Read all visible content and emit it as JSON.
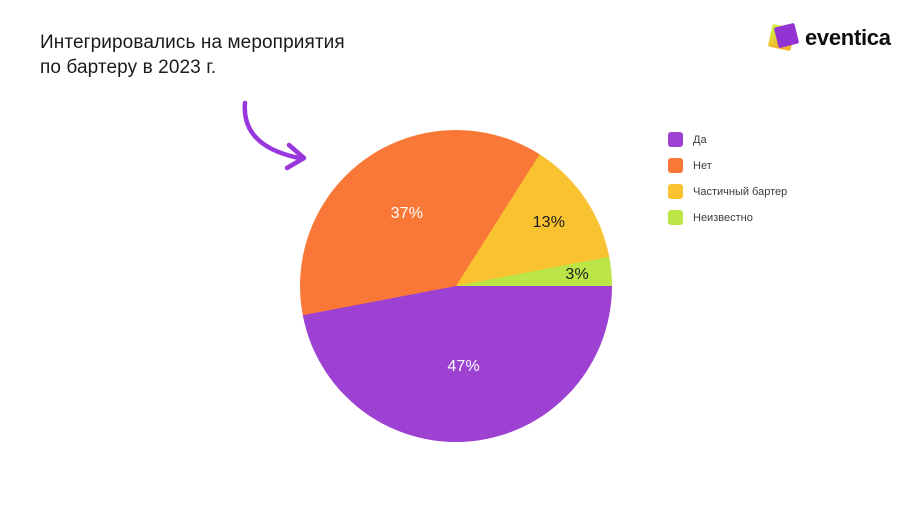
{
  "title": {
    "line1": "Интегрировались на мероприятия",
    "line2": "по бартеру в 2023 г."
  },
  "logo": {
    "text": "eventica",
    "purple": "#9333d4",
    "lime": "#d6ea3f",
    "amber": "#f5b22c"
  },
  "arrow": {
    "color": "#9837de"
  },
  "chart_data": {
    "type": "pie",
    "title": "Интегрировались на мероприятия по бартеру в 2023 г.",
    "unit": "%",
    "start_angle": "east",
    "direction": "clockwise",
    "legend_position": "right",
    "background": "#ffffff",
    "slices": [
      {
        "label": "Да",
        "value": 47,
        "display": "47%",
        "color": "#9C41D1",
        "text_color": "#FFFFFF",
        "label_r": 0.52
      },
      {
        "label": "Нет",
        "value": 37,
        "display": "37%",
        "color": "#F97837",
        "text_color": "#FFFFFF",
        "label_r": 0.56
      },
      {
        "label": "Частичный бартер",
        "value": 13,
        "display": "13%",
        "color": "#F8C230",
        "text_color": "#1C1C1C",
        "label_r": 0.72
      },
      {
        "label": "Неизвестно",
        "value": 3,
        "display": "3%",
        "color": "#BCE548",
        "text_color": "#1C1C1C",
        "label_r": 0.78
      }
    ]
  }
}
